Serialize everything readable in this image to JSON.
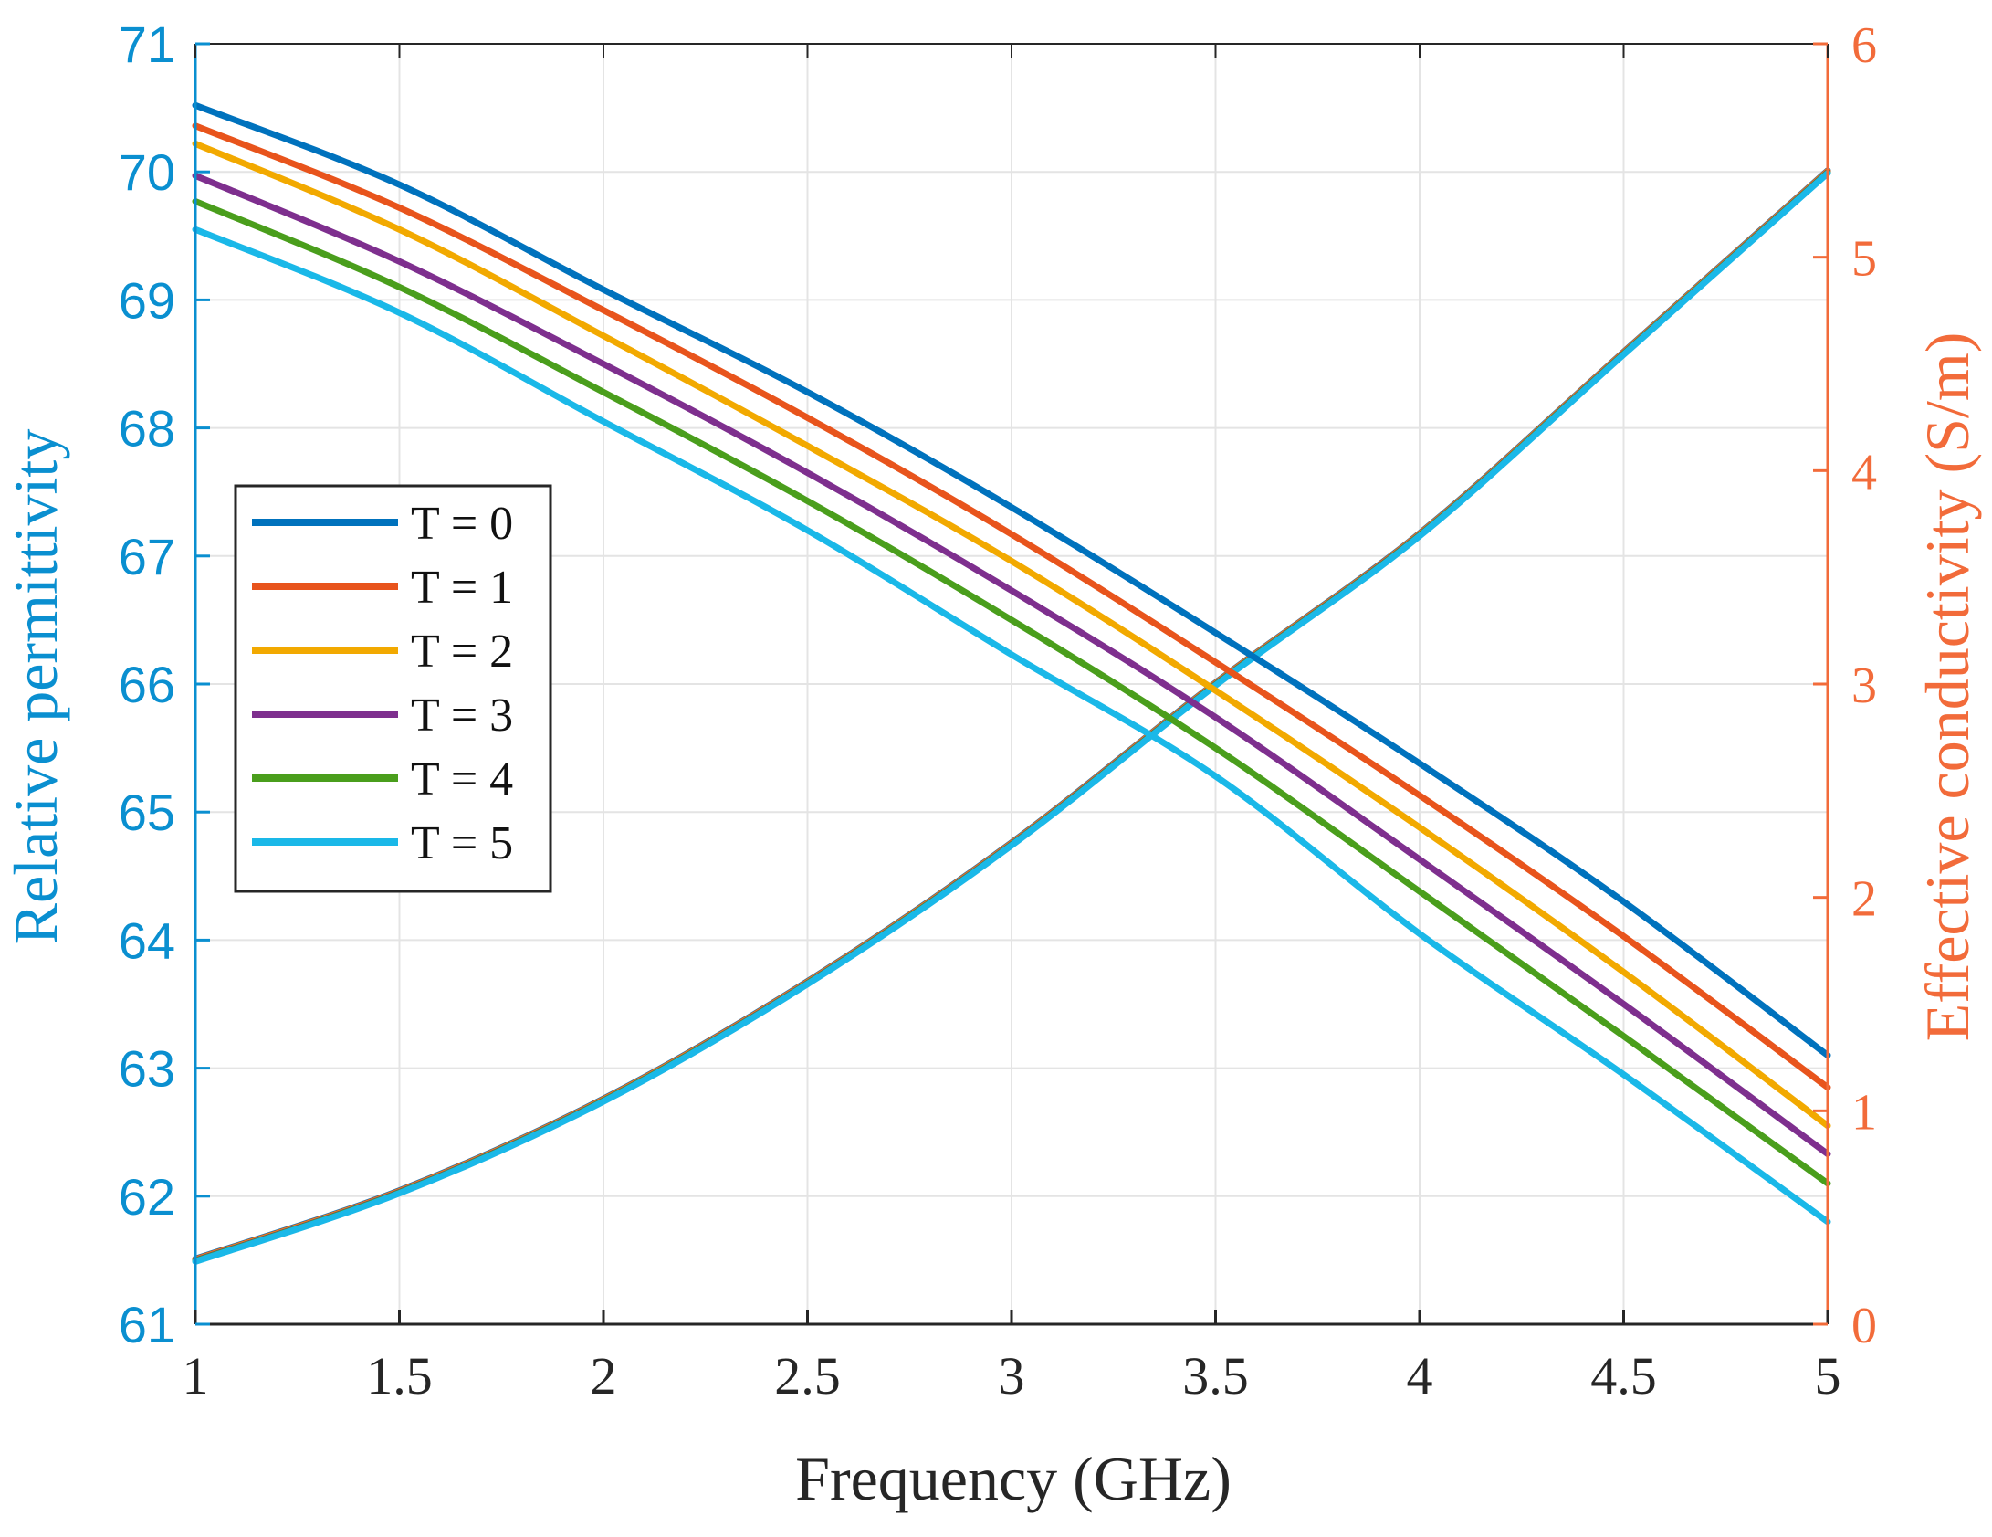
{
  "chart_data": {
    "type": "line",
    "xlabel": "Frequency (GHz)",
    "ylabel_left": "Relative permittivity",
    "ylabel_right": "Effective conductivity (S/m)",
    "xlim": [
      1,
      5
    ],
    "ylim_left": [
      61,
      71
    ],
    "ylim_right": [
      0,
      6
    ],
    "x_ticks": [
      1,
      1.5,
      2,
      2.5,
      3,
      3.5,
      4,
      4.5,
      5
    ],
    "x_tick_labels": [
      "1",
      "1.5",
      "2",
      "2.5",
      "3",
      "3.5",
      "4",
      "4.5",
      "5"
    ],
    "y_left_ticks": [
      61,
      62,
      63,
      64,
      65,
      66,
      67,
      68,
      69,
      70,
      71
    ],
    "y_left_tick_labels": [
      "61",
      "62",
      "63",
      "64",
      "65",
      "66",
      "67",
      "68",
      "69",
      "70",
      "71"
    ],
    "y_right_ticks": [
      0,
      1,
      2,
      3,
      4,
      5,
      6
    ],
    "y_right_tick_labels": [
      "0",
      "1",
      "2",
      "3",
      "4",
      "5",
      "6"
    ],
    "grid": true,
    "legend_position": "center-left",
    "colors": {
      "left_axis": "#0a8fd0",
      "right_axis": "#f26b3a",
      "grid": "#e4e4e4",
      "axis_line": "#262626"
    },
    "x": [
      1,
      1.5,
      2,
      2.5,
      3,
      3.5,
      4,
      4.5,
      5
    ],
    "conductivity": {
      "axis": "right",
      "x": [
        1,
        1.5,
        2,
        2.5,
        3,
        3.5,
        4,
        4.5,
        5
      ],
      "values": [
        0.3,
        0.62,
        1.05,
        1.6,
        2.25,
        3.0,
        3.7,
        4.55,
        5.4
      ]
    },
    "series": [
      {
        "name": "T = 0",
        "legend_label": "T = 0",
        "axis": "left",
        "color": "#0072bd",
        "values": [
          70.52,
          69.9,
          69.08,
          68.28,
          67.38,
          66.4,
          65.38,
          64.3,
          63.1
        ]
      },
      {
        "name": "T = 1",
        "legend_label": "T = 1",
        "axis": "left",
        "color": "#e8541c",
        "values": [
          70.36,
          69.72,
          68.92,
          68.08,
          67.17,
          66.17,
          65.13,
          64.03,
          62.85
        ]
      },
      {
        "name": "T = 2",
        "legend_label": "T = 2",
        "axis": "left",
        "color": "#f2a900",
        "values": [
          70.22,
          69.55,
          68.72,
          67.86,
          66.96,
          65.95,
          64.88,
          63.75,
          62.55
        ]
      },
      {
        "name": "T = 3",
        "legend_label": "T = 3",
        "axis": "left",
        "color": "#7e2f8e",
        "values": [
          69.97,
          69.3,
          68.5,
          67.65,
          66.73,
          65.74,
          64.63,
          63.5,
          62.33
        ]
      },
      {
        "name": "T = 4",
        "legend_label": "T = 4",
        "axis": "left",
        "color": "#4a9e1c",
        "values": [
          69.77,
          69.1,
          68.28,
          67.43,
          66.5,
          65.5,
          64.38,
          63.25,
          62.1
        ]
      },
      {
        "name": "T = 5",
        "legend_label": "T = 5",
        "axis": "left",
        "color": "#1ab8e8",
        "values": [
          69.55,
          68.9,
          68.05,
          67.2,
          66.23,
          65.28,
          64.05,
          62.95,
          61.8
        ]
      }
    ]
  }
}
